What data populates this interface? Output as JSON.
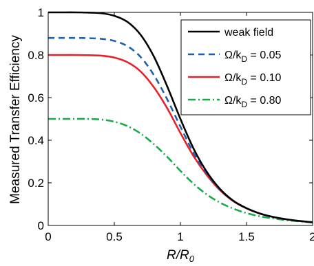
{
  "chart_data": {
    "type": "line",
    "title": "",
    "xlabel": "R/R0",
    "xlabel_main": "R/R",
    "xlabel_sub": "0",
    "ylabel": "Measured Transfer Efficiency",
    "xlim": [
      0,
      2
    ],
    "ylim": [
      0,
      1
    ],
    "xticks": [
      0,
      0.5,
      1,
      1.5,
      2
    ],
    "xtick_labels": [
      "0",
      "0.5",
      "1",
      "1.5",
      "2"
    ],
    "yticks": [
      0,
      0.2,
      0.4,
      0.6,
      0.8,
      1
    ],
    "ytick_labels": [
      "0",
      "0.2",
      "0.4",
      "0.6",
      "0.8",
      "1"
    ],
    "grid": false,
    "legend_position": "top-right",
    "series": [
      {
        "name": "weak field",
        "legend_parts": [
          "weak field",
          "",
          ""
        ],
        "color": "#000000",
        "dash": "solid",
        "x": [
          0,
          0.1,
          0.2,
          0.3,
          0.4,
          0.5,
          0.6,
          0.7,
          0.8,
          0.9,
          1.0,
          1.1,
          1.2,
          1.3,
          1.4,
          1.5,
          1.6,
          1.7,
          1.8,
          1.9,
          2.0
        ],
        "y": [
          1.0,
          1.0,
          1.0,
          0.999,
          0.996,
          0.984,
          0.955,
          0.894,
          0.792,
          0.653,
          0.5,
          0.36,
          0.251,
          0.171,
          0.116,
          0.081,
          0.056,
          0.04,
          0.029,
          0.021,
          0.015
        ]
      },
      {
        "name": "Ω/kD = 0.05",
        "legend_parts": [
          "Ω/k",
          "D",
          " = 0.05"
        ],
        "color": "#1f5fb0",
        "dash": "dashed",
        "x": [
          0,
          0.1,
          0.2,
          0.3,
          0.4,
          0.5,
          0.6,
          0.7,
          0.8,
          0.9,
          1.0,
          1.1,
          1.2,
          1.3,
          1.4,
          1.5,
          1.6,
          1.7,
          1.8,
          1.9,
          2.0
        ],
        "y": [
          0.88,
          0.88,
          0.88,
          0.879,
          0.876,
          0.866,
          0.841,
          0.79,
          0.705,
          0.592,
          0.464,
          0.34,
          0.243,
          0.168,
          0.115,
          0.081,
          0.056,
          0.04,
          0.029,
          0.021,
          0.015
        ]
      },
      {
        "name": "Ω/kD = 0.10",
        "legend_parts": [
          "Ω/k",
          "D",
          " = 0.10"
        ],
        "color": "#e8202a",
        "dash": "solid",
        "x": [
          0,
          0.1,
          0.2,
          0.3,
          0.4,
          0.5,
          0.6,
          0.7,
          0.8,
          0.9,
          1.0,
          1.1,
          1.2,
          1.3,
          1.4,
          1.5,
          1.6,
          1.7,
          1.8,
          1.9,
          2.0
        ],
        "y": [
          0.8,
          0.8,
          0.8,
          0.799,
          0.797,
          0.788,
          0.766,
          0.722,
          0.648,
          0.55,
          0.434,
          0.325,
          0.236,
          0.165,
          0.114,
          0.08,
          0.056,
          0.04,
          0.029,
          0.021,
          0.015
        ]
      },
      {
        "name": "Ω/kD = 0.80",
        "legend_parts": [
          "Ω/k",
          "D",
          " = 0.80"
        ],
        "color": "#1aa84a",
        "dash": "dashdot",
        "x": [
          0,
          0.1,
          0.2,
          0.3,
          0.4,
          0.5,
          0.6,
          0.7,
          0.8,
          0.9,
          1.0,
          1.1,
          1.2,
          1.3,
          1.4,
          1.5,
          1.6,
          1.7,
          1.8,
          1.9,
          2.0
        ],
        "y": [
          0.5,
          0.5,
          0.5,
          0.5,
          0.497,
          0.487,
          0.466,
          0.431,
          0.381,
          0.322,
          0.256,
          0.195,
          0.145,
          0.107,
          0.079,
          0.058,
          0.043,
          0.033,
          0.025,
          0.019,
          0.014
        ]
      }
    ]
  }
}
